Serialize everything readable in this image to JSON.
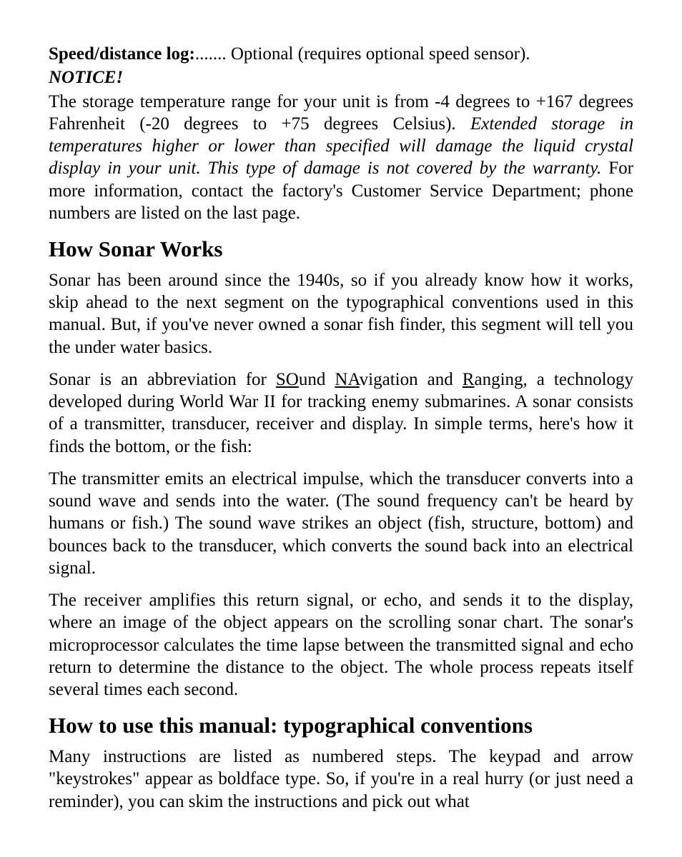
{
  "spec": {
    "label": "Speed/distance log:",
    "dots": ".......",
    "value": "Optional (requires optional speed sensor)."
  },
  "notice": {
    "title": "NOTICE!",
    "body_pre": "The storage temperature range for your unit is from -4 degrees to +167 degrees Fahrenheit (-20 degrees to +75 degrees Celsius). ",
    "body_italic": "Extended storage in temperatures higher or lower than specified will damage the liquid crystal display in your unit. This type of damage is not covered by the warranty.",
    "body_post": " For more information, contact the factory's Customer Service Department; phone numbers are listed on the last page."
  },
  "sonar": {
    "heading": "How Sonar Works",
    "p1": "Sonar has been around since the 1940s, so if you already know how it works, skip ahead to the next segment on the typographical conventions used in this manual. But, if you've never owned a sonar fish finder, this segment will tell you the under water basics.",
    "p2_a": "Sonar is an abbreviation for ",
    "p2_so": "SO",
    "p2_b": "und ",
    "p2_na": "NA",
    "p2_c": "vigation and ",
    "p2_r": "R",
    "p2_d": "anging, a technology developed during World War II for tracking enemy submarines. A sonar consists of a transmitter, transducer, receiver and display. In simple terms, here's how it finds the bottom, or the fish:",
    "p3": "The transmitter emits an electrical impulse, which the transducer converts into a sound wave and sends into the water. (The sound frequency can't be heard by humans or fish.) The sound wave strikes an object (fish, structure, bottom) and bounces back to the transducer, which converts the sound back into an electrical signal.",
    "p4": "The receiver amplifies this return signal, or echo, and sends it to the display, where an image of the object appears on the scrolling sonar chart. The sonar's microprocessor calculates the time lapse between the transmitted signal and echo return to determine the distance to the object. The whole process repeats itself several times each second."
  },
  "typo": {
    "heading": "How to use this manual: typographical conventions",
    "p1": "Many instructions are listed as numbered steps. The keypad and arrow \"keystrokes\" appear as boldface type. So, if you're in a real hurry (or just need a reminder), you can skim the instructions and pick out what"
  }
}
